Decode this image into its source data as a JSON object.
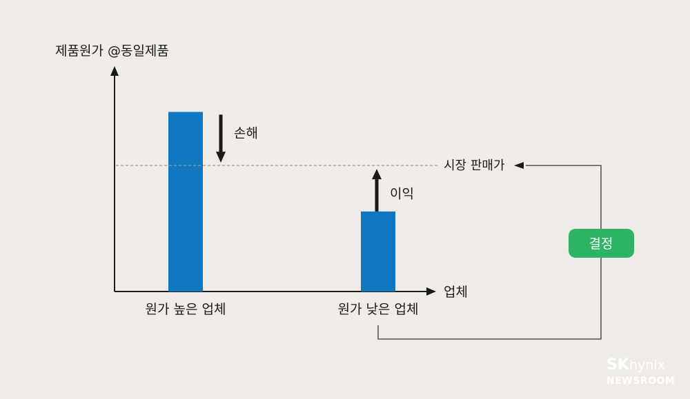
{
  "chart_data": {
    "type": "bar",
    "ylabel": "제품원가 @동일제품",
    "xlabel": "업체",
    "categories": [
      "원가 높은 업체",
      "원가 낮은 업체"
    ],
    "values": [
      2.85,
      1.27
    ],
    "reference_line": {
      "label": "시장 판매가",
      "value": 2.0
    },
    "annotations": [
      {
        "label": "손해",
        "direction": "down",
        "category": 0
      },
      {
        "label": "이익",
        "direction": "up",
        "category": 1
      }
    ],
    "decision_label": "결정",
    "ylim": [
      0,
      3.5
    ],
    "grid": false,
    "colors": {
      "bar": "#0f78c1",
      "decision_badge": "#2db365",
      "axis": "#1a1a1a",
      "reference_line": "#999999",
      "connector": "#333333"
    }
  },
  "logo": {
    "brand": "SK",
    "product": "hynix",
    "sub": "NEWSROOM"
  }
}
